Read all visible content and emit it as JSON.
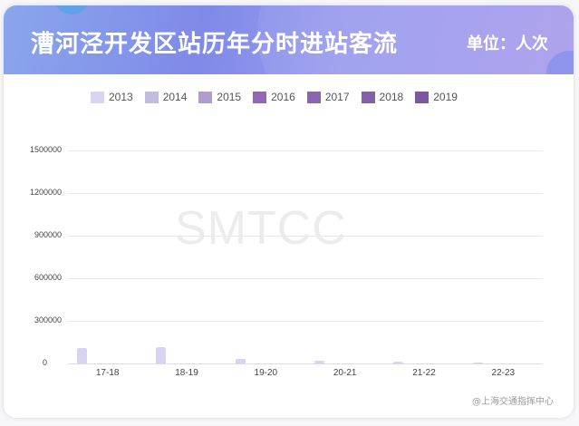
{
  "header": {
    "title": "漕河泾开发区站历年分时进站客流",
    "unit": "单位：人次"
  },
  "watermark": "SMTCC",
  "credit": "@上海交通指挥中心",
  "colors": {
    "2013": "#d9d4f4",
    "2014": "#c2bde0",
    "2015": "#b09cd0",
    "2016": "#9466b8",
    "2017": "#8c62b4",
    "2018": "#8460a8",
    "2019": "#7c58a0"
  },
  "chart_data": {
    "type": "bar",
    "title": "漕河泾开发区站历年分时进站客流",
    "unit": "人次",
    "categories": [
      "17-18",
      "18-19",
      "19-20",
      "20-21",
      "21-22",
      "22-23"
    ],
    "series": [
      {
        "name": "2013",
        "values": [
          108000,
          115000,
          32000,
          19000,
          13000,
          5000
        ]
      },
      {
        "name": "2014",
        "values": [
          0,
          0,
          0,
          0,
          0,
          0
        ]
      },
      {
        "name": "2015",
        "values": [
          0,
          0,
          0,
          0,
          0,
          0
        ]
      },
      {
        "name": "2016",
        "values": [
          0,
          0,
          0,
          0,
          0,
          0
        ]
      },
      {
        "name": "2017",
        "values": [
          0,
          0,
          0,
          0,
          0,
          0
        ]
      },
      {
        "name": "2018",
        "values": [
          0,
          0,
          0,
          0,
          0,
          0
        ]
      },
      {
        "name": "2019",
        "values": [
          0,
          0,
          0,
          0,
          0,
          0
        ]
      }
    ],
    "yticks": [
      "1500000",
      "1200000",
      "900000",
      "600000",
      "300000",
      "0"
    ],
    "ylim": [
      0,
      1500000
    ],
    "xlabel": "",
    "ylabel": "",
    "grid": true,
    "legend_position": "top"
  }
}
